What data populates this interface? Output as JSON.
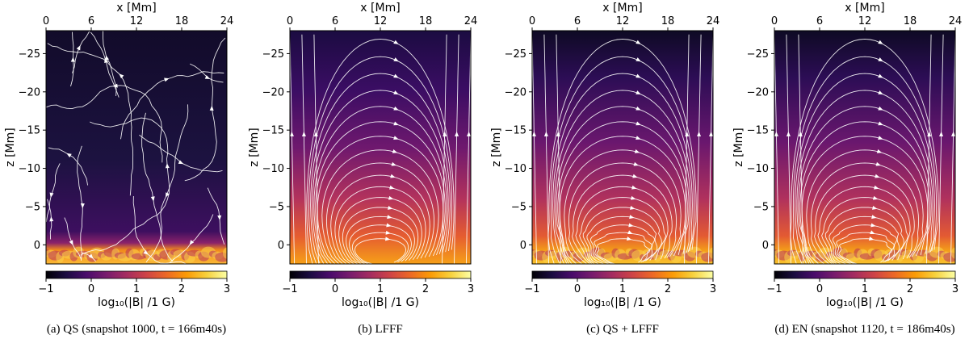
{
  "chart_data": {
    "type": "heatmap",
    "shared": {
      "xlabel": "x [Mm]",
      "ylabel": "z [Mm]",
      "xlim": [
        0,
        24
      ],
      "ylim": [
        2.5,
        -28
      ],
      "x_ticks": [
        0,
        6,
        12,
        18,
        24
      ],
      "y_ticks": [
        0,
        -5,
        -10,
        -15,
        -20,
        -25
      ],
      "y_tick_labels": [
        "0",
        "−5",
        "−10",
        "−15",
        "−20",
        "−25"
      ],
      "colorbar": {
        "ticks": [
          -1,
          0,
          1,
          2,
          3
        ],
        "tick_labels": [
          "−1",
          "0",
          "1",
          "2",
          "3"
        ],
        "range": [
          -1,
          3
        ],
        "colormap": "inferno",
        "label": "log₁₀(|B| /1 G)"
      }
    },
    "panels": [
      {
        "id": "qs",
        "caption": "(a) QS (snapshot 1000, t = 166m40s)",
        "pattern": "turbulent"
      },
      {
        "id": "lfff",
        "caption": "(b) LFFF",
        "pattern": "arcade"
      },
      {
        "id": "qslfff",
        "caption": "(c) QS + LFFF",
        "pattern": "arcade-perturbed"
      },
      {
        "id": "en",
        "caption": "(d) EN (snapshot 1120, t = 186m40s)",
        "pattern": "arcade-perturbed"
      }
    ]
  },
  "colors": {
    "inferno": [
      "#000004",
      "#1b0c41",
      "#4a0c6b",
      "#781c6d",
      "#a52c60",
      "#cf4446",
      "#ed6925",
      "#fb9b06",
      "#f7d13d",
      "#fcffa4"
    ],
    "line": "#ffffff"
  }
}
